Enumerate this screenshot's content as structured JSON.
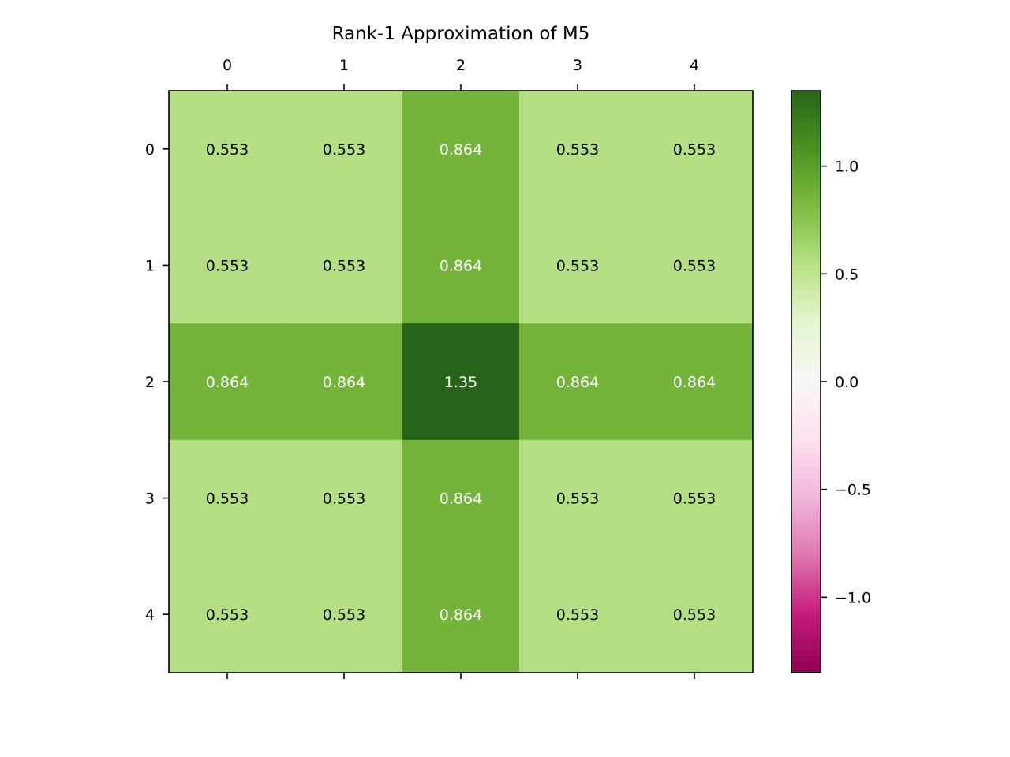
{
  "chart_data": {
    "type": "heatmap",
    "title": "Rank-1 Approximation of M5",
    "x_ticks": [
      "0",
      "1",
      "2",
      "3",
      "4"
    ],
    "y_ticks": [
      "0",
      "1",
      "2",
      "3",
      "4"
    ],
    "values": [
      [
        0.553,
        0.553,
        0.864,
        0.553,
        0.553
      ],
      [
        0.553,
        0.553,
        0.864,
        0.553,
        0.553
      ],
      [
        0.864,
        0.864,
        1.35,
        0.864,
        0.864
      ],
      [
        0.553,
        0.553,
        0.864,
        0.553,
        0.553
      ],
      [
        0.553,
        0.553,
        0.864,
        0.553,
        0.553
      ]
    ],
    "cell_labels": [
      [
        "0.553",
        "0.553",
        "0.864",
        "0.553",
        "0.553"
      ],
      [
        "0.553",
        "0.553",
        "0.864",
        "0.553",
        "0.553"
      ],
      [
        "0.864",
        "0.864",
        "1.35",
        "0.864",
        "0.864"
      ],
      [
        "0.553",
        "0.553",
        "0.864",
        "0.553",
        "0.553"
      ],
      [
        "0.553",
        "0.553",
        "0.864",
        "0.553",
        "0.553"
      ]
    ],
    "colormap": "PiYG",
    "colorbar": {
      "range": [
        -1.35,
        1.35
      ],
      "ticks": [
        1.0,
        0.5,
        0.0,
        -0.5,
        -1.0
      ],
      "tick_labels": [
        "1.0",
        "0.5",
        "0.0",
        "−0.5",
        "−1.0"
      ]
    },
    "colors": {
      "light_green": "#b8e186",
      "mid_green": "#7ab53e",
      "dark_green": "#276419",
      "center_white": "#f7f7f7",
      "light_pink": "#f1b6da",
      "dark_magenta": "#8e0152"
    }
  }
}
